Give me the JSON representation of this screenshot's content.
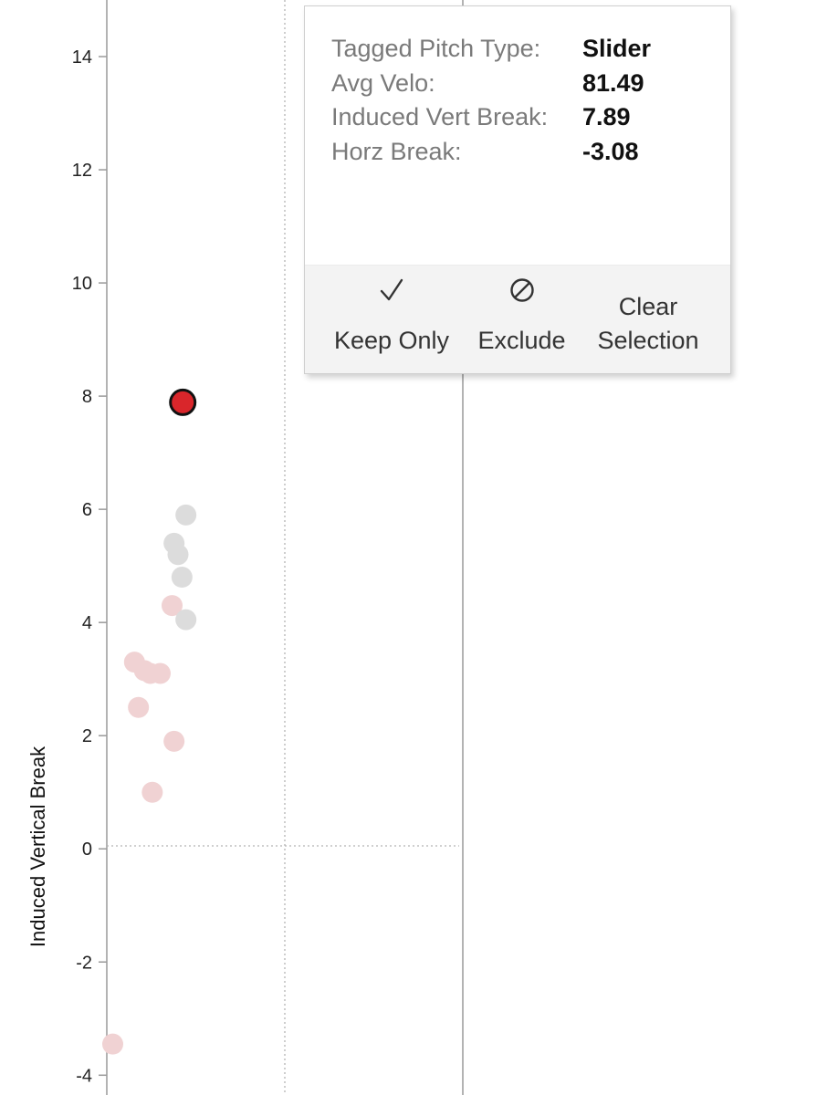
{
  "chart_data": {
    "type": "scatter",
    "ylabel": "Induced Vertical Break",
    "xlabel": "",
    "ylim": [
      -4.35,
      15.0
    ],
    "xlim": [
      -5.0,
      4.0
    ],
    "y_ticks": [
      14,
      12,
      10,
      8,
      6,
      4,
      2,
      0,
      -2,
      -4
    ],
    "y_tick_labels": [
      "14",
      "12",
      "10",
      "8",
      "6",
      "4",
      "2",
      "0",
      "-2",
      "-4"
    ],
    "selected_point": {
      "x": -3.08,
      "y": 7.89
    },
    "points_gray": [
      {
        "x": -3.0,
        "y": 5.9
      },
      {
        "x": -3.3,
        "y": 5.4
      },
      {
        "x": -3.2,
        "y": 5.2
      },
      {
        "x": -3.1,
        "y": 4.8
      },
      {
        "x": -3.0,
        "y": 4.05
      }
    ],
    "points_pink": [
      {
        "x": -3.35,
        "y": 4.3
      },
      {
        "x": -4.3,
        "y": 3.3
      },
      {
        "x": -4.05,
        "y": 3.15
      },
      {
        "x": -3.9,
        "y": 3.1
      },
      {
        "x": -3.65,
        "y": 3.1
      },
      {
        "x": -4.2,
        "y": 2.5
      },
      {
        "x": -3.3,
        "y": 1.9
      },
      {
        "x": -3.85,
        "y": 1.0
      },
      {
        "x": -4.85,
        "y": -3.45
      }
    ],
    "colors": {
      "selected": "#d9262b",
      "gray": "#dcdcdc",
      "pink": "#f0d2d3",
      "axis": "#9a9a9a",
      "reference": "#b3b3b3"
    }
  },
  "tooltip": {
    "fields": [
      {
        "key": "Tagged Pitch Type:",
        "value": "Slider"
      },
      {
        "key": "Avg Velo:",
        "value": "81.49"
      },
      {
        "key": "Induced Vert Break:",
        "value": "7.89"
      },
      {
        "key": "Horz Break:",
        "value": "-3.08"
      }
    ],
    "actions": {
      "keep_only": {
        "label": "Keep Only",
        "icon": "check-icon"
      },
      "exclude": {
        "label": "Exclude",
        "icon": "prohibit-icon"
      },
      "clear_selection": {
        "label_line1": "Clear",
        "label_line2": "Selection"
      }
    }
  }
}
